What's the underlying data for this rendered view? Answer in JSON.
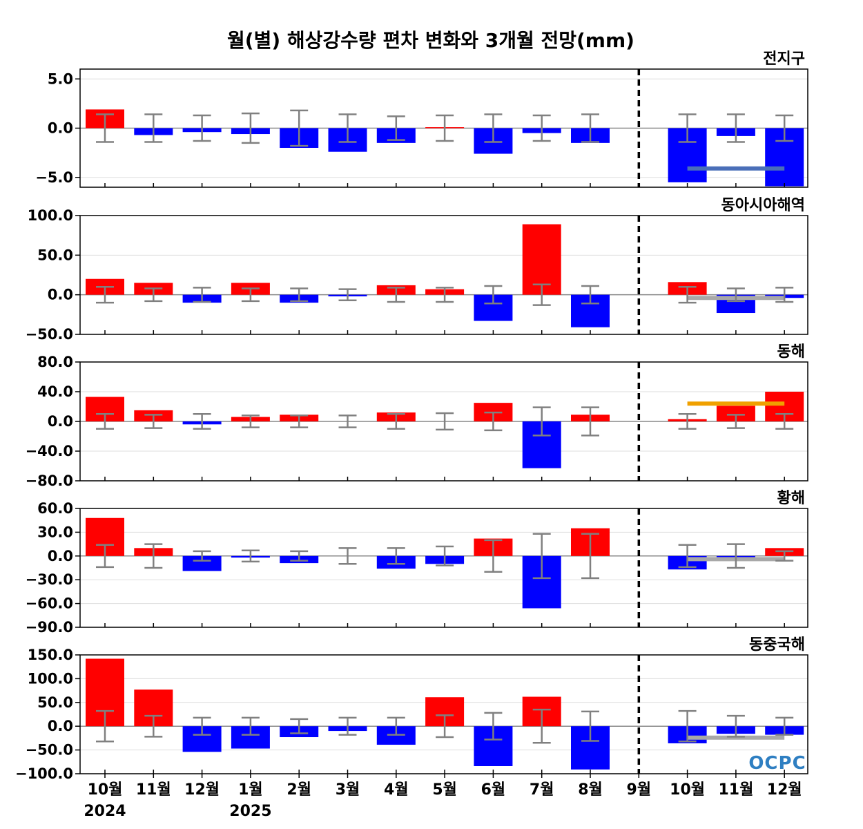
{
  "title": "월(별) 해상강수량 편차 변화와 3개월 전망(mm)",
  "logo_text": "OCPC",
  "colors": {
    "positive": "#ff0000",
    "negative": "#0000ff",
    "error": "#808080",
    "grid": "#dddddd"
  },
  "chart_data": {
    "type": "bar",
    "categories": [
      "10월",
      "11월",
      "12월",
      "1월",
      "2월",
      "3월",
      "4월",
      "5월",
      "6월",
      "7월",
      "8월",
      "9월",
      "10월",
      "11월",
      "12월"
    ],
    "year_labels": [
      {
        "index": 0,
        "label": "2024"
      },
      {
        "index": 3,
        "label": "2025"
      }
    ],
    "forecast_divider_index": 11,
    "panels": [
      {
        "region": "전지구",
        "ylim": [
          -6,
          6
        ],
        "yticks": [
          5.0,
          0.0,
          -5.0
        ],
        "ytick_labels": [
          "5.0",
          "0.0",
          "−5.0"
        ],
        "values": [
          1.9,
          -0.7,
          -0.4,
          -0.6,
          -2.0,
          -2.4,
          -1.5,
          0.1,
          -2.6,
          -0.5,
          -1.5,
          0.0,
          -5.5,
          -0.8,
          -5.9
        ],
        "error": [
          1.4,
          1.4,
          1.3,
          1.5,
          1.8,
          1.4,
          1.2,
          1.3,
          1.4,
          1.3,
          1.4,
          0.0,
          1.4,
          1.4,
          1.3
        ],
        "forecast": {
          "value": -4.1,
          "color": "#4a6fb8"
        }
      },
      {
        "region": "동아시아해역",
        "ylim": [
          -50,
          100
        ],
        "yticks": [
          100.0,
          50.0,
          0.0,
          -50.0
        ],
        "ytick_labels": [
          "100.0",
          "50.0",
          "0.0",
          "−50.0"
        ],
        "values": [
          20,
          15,
          -10,
          15,
          -10,
          -2,
          12,
          7,
          -33,
          89,
          -41,
          0,
          16,
          -23,
          -4
        ],
        "error": [
          10,
          8,
          9,
          8,
          8,
          7,
          9,
          9,
          11,
          13,
          11,
          0,
          10,
          8,
          9
        ],
        "forecast": {
          "value": -4,
          "color": "#a8a8a8"
        }
      },
      {
        "region": "동해",
        "ylim": [
          -80,
          80
        ],
        "yticks": [
          80.0,
          40.0,
          0.0,
          -40.0,
          -80.0
        ],
        "ytick_labels": [
          "80.0",
          "40.0",
          "0.0",
          "−40.0",
          "−80.0"
        ],
        "values": [
          33,
          15,
          -4,
          6,
          9,
          0,
          12,
          0,
          25,
          -63,
          9,
          0,
          3,
          21,
          40
        ],
        "error": [
          10,
          9,
          10,
          8,
          8,
          8,
          10,
          11,
          12,
          19,
          19,
          0,
          10,
          9,
          10
        ],
        "forecast": {
          "value": 24,
          "color": "#f0a000"
        }
      },
      {
        "region": "황해",
        "ylim": [
          -90,
          60
        ],
        "yticks": [
          60.0,
          30.0,
          0.0,
          -30.0,
          -60.0,
          -90.0
        ],
        "ytick_labels": [
          "60.0",
          "30.0",
          "0.0",
          "−30.0",
          "−60.0",
          "−90.0"
        ],
        "values": [
          48,
          10,
          -19,
          -2,
          -9,
          0,
          -16,
          -10,
          22,
          -66,
          35,
          0,
          -17,
          -2,
          10
        ],
        "error": [
          14,
          15,
          6,
          7,
          6,
          10,
          10,
          12,
          20,
          28,
          28,
          0,
          14,
          15,
          6
        ],
        "forecast": {
          "value": -4,
          "color": "#a8a8a8"
        }
      },
      {
        "region": "동중국해",
        "ylim": [
          -100,
          150
        ],
        "yticks": [
          150.0,
          100.0,
          50.0,
          0.0,
          -50.0,
          -100.0
        ],
        "ytick_labels": [
          "150.0",
          "100.0",
          "50.0",
          "0.0",
          "−50.0",
          "−100.0"
        ],
        "values": [
          142,
          77,
          -54,
          -47,
          -23,
          -10,
          -39,
          61,
          -84,
          62,
          -91,
          0,
          -36,
          -16,
          -18
        ],
        "error": [
          32,
          22,
          18,
          18,
          15,
          18,
          18,
          23,
          28,
          35,
          31,
          0,
          32,
          22,
          18
        ],
        "forecast": {
          "value": -24,
          "color": "#a8a8a8"
        }
      }
    ]
  }
}
